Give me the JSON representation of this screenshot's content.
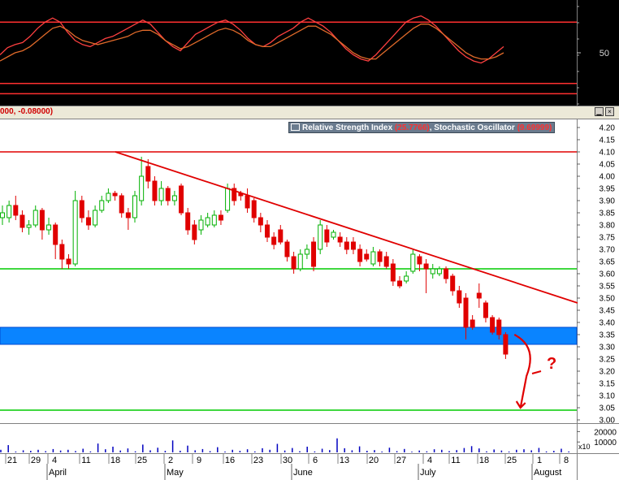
{
  "header": {
    "values_text": "000, -0.08000)"
  },
  "window_buttons": [
    {
      "label": "▁"
    },
    {
      "label": "×"
    }
  ],
  "legend": {
    "rsi_label": "Relative Strength Index",
    "rsi_value": "(25.7766)",
    "separator": ",",
    "stoch_label": "Stochastic Oscillator",
    "stoch_value": "(9.69999)"
  },
  "colors": {
    "up": "#00b000",
    "down": "#e00000",
    "trend": "#e00000",
    "band": "#0a84ff",
    "support": "#00cc00",
    "osc_bg": "#000000",
    "osc_line": "#ff3030"
  },
  "chart_data": [
    {
      "type": "line",
      "name_in_image": "oscillator",
      "series": [
        {
          "values": [
            48,
            55,
            58,
            60,
            66,
            74,
            80,
            84,
            80,
            70,
            62,
            58,
            56,
            60,
            64,
            66,
            70,
            74,
            78,
            82,
            78,
            70,
            62,
            56,
            52,
            60,
            68,
            72,
            76,
            80,
            82,
            78,
            72,
            64,
            58,
            56,
            60,
            66,
            70,
            74,
            80,
            84,
            80,
            76,
            70,
            62,
            54,
            48,
            44,
            42,
            48,
            56,
            64,
            72,
            80,
            84,
            86,
            82,
            76,
            68,
            60,
            52,
            46,
            42,
            40,
            44,
            50,
            56
          ]
        },
        {
          "values": [
            42,
            46,
            50,
            52,
            56,
            62,
            68,
            74,
            76,
            72,
            66,
            62,
            60,
            58,
            60,
            62,
            64,
            66,
            70,
            72,
            72,
            68,
            62,
            58,
            54,
            56,
            60,
            64,
            68,
            72,
            74,
            72,
            68,
            62,
            58,
            56,
            56,
            60,
            64,
            68,
            72,
            76,
            76,
            72,
            68,
            62,
            56,
            50,
            46,
            44,
            44,
            50,
            56,
            62,
            68,
            74,
            78,
            78,
            74,
            68,
            62,
            56,
            50,
            46,
            44,
            44,
            46,
            50
          ]
        }
      ],
      "ylim": [
        0,
        100
      ],
      "yticks": [
        50
      ],
      "reference_lines": [
        80,
        20,
        10
      ]
    },
    {
      "type": "candlestick",
      "name_in_image": "price",
      "ylim": [
        3.0,
        4.2
      ],
      "yticks": [
        "3.00",
        "3.05",
        "3.10",
        "3.15",
        "3.20",
        "3.25",
        "3.30",
        "3.35",
        "3.40",
        "3.45",
        "3.50",
        "3.55",
        "3.60",
        "3.65",
        "3.70",
        "3.75",
        "3.80",
        "3.85",
        "3.90",
        "3.95",
        "4.00",
        "4.05",
        "4.10",
        "4.15",
        "4.20"
      ],
      "resistance": 4.1,
      "support_lines": [
        3.62,
        3.04
      ],
      "band": [
        3.31,
        3.38
      ],
      "trendline": [
        {
          "x": 20,
          "y": 4.1
        },
        {
          "x": 97,
          "y": 3.48
        }
      ],
      "annotation": {
        "text": "?",
        "curve": [
          [
            85,
            3.35
          ],
          [
            87,
            3.18
          ],
          [
            86,
            3.05
          ]
        ]
      },
      "candles": [
        {
          "o": 3.83,
          "c": 3.85,
          "h": 3.88,
          "l": 3.8
        },
        {
          "o": 3.83,
          "c": 3.88,
          "h": 3.9,
          "l": 3.81
        },
        {
          "o": 3.88,
          "c": 3.84,
          "h": 3.92,
          "l": 3.82
        },
        {
          "o": 3.84,
          "c": 3.79,
          "h": 3.86,
          "l": 3.77
        },
        {
          "o": 3.79,
          "c": 3.8,
          "h": 3.82,
          "l": 3.76
        },
        {
          "o": 3.8,
          "c": 3.86,
          "h": 3.88,
          "l": 3.79
        },
        {
          "o": 3.86,
          "c": 3.78,
          "h": 3.87,
          "l": 3.74
        },
        {
          "o": 3.78,
          "c": 3.8,
          "h": 3.83,
          "l": 3.76
        },
        {
          "o": 3.8,
          "c": 3.72,
          "h": 3.81,
          "l": 3.66
        },
        {
          "o": 3.72,
          "c": 3.66,
          "h": 3.74,
          "l": 3.62
        },
        {
          "o": 3.66,
          "c": 3.64,
          "h": 3.68,
          "l": 3.62
        },
        {
          "o": 3.64,
          "c": 3.9,
          "h": 3.94,
          "l": 3.63
        },
        {
          "o": 3.9,
          "c": 3.83,
          "h": 3.92,
          "l": 3.81
        },
        {
          "o": 3.83,
          "c": 3.8,
          "h": 3.86,
          "l": 3.78
        },
        {
          "o": 3.8,
          "c": 3.86,
          "h": 3.88,
          "l": 3.79
        },
        {
          "o": 3.86,
          "c": 3.9,
          "h": 3.92,
          "l": 3.85
        },
        {
          "o": 3.9,
          "c": 3.93,
          "h": 3.95,
          "l": 3.89
        },
        {
          "o": 3.93,
          "c": 3.92,
          "h": 3.94,
          "l": 3.9
        },
        {
          "o": 3.92,
          "c": 3.85,
          "h": 3.93,
          "l": 3.83
        },
        {
          "o": 3.85,
          "c": 3.83,
          "h": 3.87,
          "l": 3.78
        },
        {
          "o": 3.83,
          "c": 3.92,
          "h": 3.94,
          "l": 3.81
        },
        {
          "o": 3.9,
          "c": 4.0,
          "h": 4.08,
          "l": 3.88
        },
        {
          "o": 4.04,
          "c": 3.98,
          "h": 4.07,
          "l": 3.95
        },
        {
          "o": 3.98,
          "c": 3.9,
          "h": 4.0,
          "l": 3.88
        },
        {
          "o": 3.9,
          "c": 3.95,
          "h": 3.98,
          "l": 3.88
        },
        {
          "o": 3.95,
          "c": 3.9,
          "h": 3.96,
          "l": 3.88
        },
        {
          "o": 3.9,
          "c": 3.92,
          "h": 3.94,
          "l": 3.88
        },
        {
          "o": 3.96,
          "c": 3.85,
          "h": 3.97,
          "l": 3.84
        },
        {
          "o": 3.85,
          "c": 3.78,
          "h": 3.87,
          "l": 3.76
        },
        {
          "o": 3.8,
          "c": 3.74,
          "h": 3.82,
          "l": 3.72
        },
        {
          "o": 3.78,
          "c": 3.82,
          "h": 3.84,
          "l": 3.76
        },
        {
          "o": 3.8,
          "c": 3.83,
          "h": 3.85,
          "l": 3.79
        },
        {
          "o": 3.8,
          "c": 3.84,
          "h": 3.86,
          "l": 3.79
        },
        {
          "o": 3.84,
          "c": 3.82,
          "h": 3.86,
          "l": 3.8
        },
        {
          "o": 3.86,
          "c": 3.95,
          "h": 3.97,
          "l": 3.85
        },
        {
          "o": 3.95,
          "c": 3.9,
          "h": 3.97,
          "l": 3.88
        },
        {
          "o": 3.93,
          "c": 3.92,
          "h": 3.94,
          "l": 3.9
        },
        {
          "o": 3.92,
          "c": 3.87,
          "h": 3.95,
          "l": 3.85
        },
        {
          "o": 3.9,
          "c": 3.83,
          "h": 3.91,
          "l": 3.81
        },
        {
          "o": 3.83,
          "c": 3.8,
          "h": 3.85,
          "l": 3.77
        },
        {
          "o": 3.8,
          "c": 3.75,
          "h": 3.82,
          "l": 3.73
        },
        {
          "o": 3.75,
          "c": 3.72,
          "h": 3.77,
          "l": 3.7
        },
        {
          "o": 3.78,
          "c": 3.73,
          "h": 3.8,
          "l": 3.72
        },
        {
          "o": 3.73,
          "c": 3.67,
          "h": 3.74,
          "l": 3.65
        },
        {
          "o": 3.67,
          "c": 3.62,
          "h": 3.69,
          "l": 3.6
        },
        {
          "o": 3.62,
          "c": 3.68,
          "h": 3.7,
          "l": 3.61
        },
        {
          "o": 3.68,
          "c": 3.7,
          "h": 3.72,
          "l": 3.66
        },
        {
          "o": 3.73,
          "c": 3.63,
          "h": 3.75,
          "l": 3.61
        },
        {
          "o": 3.7,
          "c": 3.8,
          "h": 3.82,
          "l": 3.68
        },
        {
          "o": 3.78,
          "c": 3.73,
          "h": 3.8,
          "l": 3.71
        },
        {
          "o": 3.75,
          "c": 3.77,
          "h": 3.78,
          "l": 3.74
        },
        {
          "o": 3.75,
          "c": 3.73,
          "h": 3.77,
          "l": 3.71
        },
        {
          "o": 3.73,
          "c": 3.7,
          "h": 3.75,
          "l": 3.68
        },
        {
          "o": 3.73,
          "c": 3.7,
          "h": 3.75,
          "l": 3.68
        },
        {
          "o": 3.7,
          "c": 3.65,
          "h": 3.72,
          "l": 3.63
        },
        {
          "o": 3.68,
          "c": 3.66,
          "h": 3.7,
          "l": 3.65
        },
        {
          "o": 3.64,
          "c": 3.69,
          "h": 3.71,
          "l": 3.63
        },
        {
          "o": 3.69,
          "c": 3.65,
          "h": 3.7,
          "l": 3.63
        },
        {
          "o": 3.67,
          "c": 3.63,
          "h": 3.69,
          "l": 3.62
        },
        {
          "o": 3.64,
          "c": 3.57,
          "h": 3.66,
          "l": 3.55
        },
        {
          "o": 3.57,
          "c": 3.55,
          "h": 3.59,
          "l": 3.54
        },
        {
          "o": 3.57,
          "c": 3.59,
          "h": 3.61,
          "l": 3.56
        },
        {
          "o": 3.61,
          "c": 3.68,
          "h": 3.7,
          "l": 3.6
        },
        {
          "o": 3.67,
          "c": 3.64,
          "h": 3.68,
          "l": 3.61
        },
        {
          "o": 3.64,
          "c": 3.62,
          "h": 3.66,
          "l": 3.52
        },
        {
          "o": 3.6,
          "c": 3.62,
          "h": 3.64,
          "l": 3.58
        },
        {
          "o": 3.6,
          "c": 3.62,
          "h": 3.63,
          "l": 3.59
        },
        {
          "o": 3.62,
          "c": 3.58,
          "h": 3.63,
          "l": 3.56
        },
        {
          "o": 3.59,
          "c": 3.53,
          "h": 3.6,
          "l": 3.51
        },
        {
          "o": 3.53,
          "c": 3.48,
          "h": 3.55,
          "l": 3.46
        },
        {
          "o": 3.5,
          "c": 3.38,
          "h": 3.52,
          "l": 3.33
        },
        {
          "o": 3.41,
          "c": 3.38,
          "h": 3.43,
          "l": 3.37
        },
        {
          "o": 3.52,
          "c": 3.5,
          "h": 3.56,
          "l": 3.46
        },
        {
          "o": 3.48,
          "c": 3.42,
          "h": 3.49,
          "l": 3.4
        },
        {
          "o": 3.42,
          "c": 3.36,
          "h": 3.43,
          "l": 3.35
        },
        {
          "o": 3.41,
          "c": 3.35,
          "h": 3.42,
          "l": 3.33
        },
        {
          "o": 3.35,
          "c": 3.27,
          "h": 3.36,
          "l": 3.25
        }
      ]
    },
    {
      "type": "bar",
      "name_in_image": "volume",
      "ylim": [
        0,
        25000
      ],
      "yticks": [
        "20000",
        "10000"
      ],
      "scale_label": "x10",
      "values": [
        2500,
        7000,
        800,
        2000,
        1500,
        2500,
        1200,
        3200,
        1800,
        2500,
        1300,
        3500,
        900,
        8500,
        3000,
        5500,
        1800,
        3800,
        1000,
        7500,
        2000,
        4500,
        1500,
        11500,
        1600,
        6500,
        2000,
        3200,
        1200,
        5000,
        800,
        2500,
        1500,
        3000,
        900,
        4000,
        2500,
        8200,
        1800,
        4200,
        1100,
        5500,
        900,
        3500,
        2200,
        13500,
        4000,
        2000,
        5800,
        1500,
        2200,
        800,
        4500,
        1200,
        3300,
        700,
        1800,
        1000,
        3000,
        2500,
        1200,
        2200,
        4200,
        6000,
        3800,
        1000,
        2800,
        1800,
        800,
        2500,
        3000,
        2000,
        4300,
        900,
        1500,
        3500,
        900
      ]
    }
  ],
  "x_axis": {
    "ticks": [
      "21",
      "29",
      "4",
      "11",
      "18",
      "25",
      "2",
      "9",
      "16",
      "23",
      "30",
      "6",
      "13",
      "20",
      "27",
      "4",
      "11",
      "18",
      "25",
      "1",
      "8"
    ],
    "months": [
      "April",
      "May",
      "June",
      "July",
      "August"
    ]
  }
}
